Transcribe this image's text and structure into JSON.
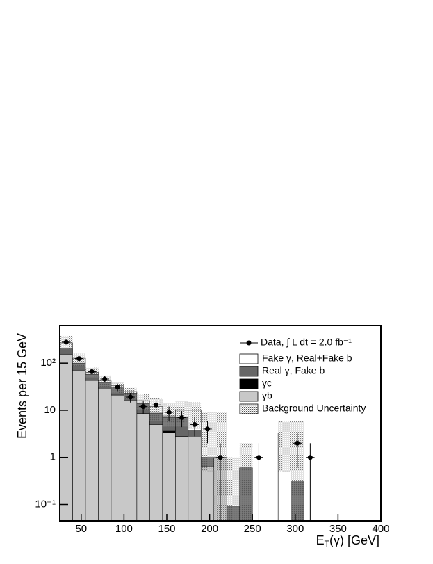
{
  "chart_data": {
    "type": "stacked_histogram",
    "y_label": "Events per 15 GeV",
    "x_label": {
      "main": "E",
      "sub": "T",
      "rest": "(γ) [GeV]"
    },
    "log_y": true,
    "bins": [
      25,
      40,
      55,
      70,
      85,
      100,
      115,
      130,
      145,
      160,
      175,
      190,
      205,
      220,
      235,
      250,
      265,
      280,
      295,
      310,
      325,
      340,
      355,
      370,
      385,
      400
    ],
    "xlim": [
      25,
      400
    ],
    "xticks": [
      50,
      100,
      150,
      200,
      250,
      300,
      350,
      400
    ],
    "ylim": [
      0.045,
      630
    ],
    "yticks": [
      {
        "value": 0.1,
        "label": "10⁻¹"
      },
      1,
      10,
      {
        "value": 100,
        "label": "10²"
      }
    ],
    "series": [
      {
        "name": "γb",
        "color": "#c8c8c8",
        "values": [
          155,
          71,
          43,
          28,
          21,
          16,
          8.5,
          5,
          3.4,
          2.8,
          2.7,
          0.64,
          1.0,
          0,
          0,
          0,
          0,
          0,
          0,
          0,
          0,
          0,
          0,
          0,
          0
        ]
      },
      {
        "name": "γc",
        "color": "#000000",
        "values": [
          0,
          0,
          0,
          0,
          0,
          0,
          0,
          0,
          0.2,
          0,
          0,
          0,
          0,
          0,
          0,
          0,
          0,
          0,
          0,
          0,
          0,
          0,
          0,
          0,
          0
        ]
      },
      {
        "name": "Real γ, Fake b",
        "color": "#666666",
        "values": [
          55,
          29,
          15,
          11,
          10,
          7,
          5.5,
          3.7,
          3.5,
          4.2,
          1.1,
          0.36,
          0,
          0.09,
          0.6,
          0,
          0,
          0,
          0.32,
          0,
          0,
          0,
          0,
          0,
          0
        ]
      },
      {
        "name": "Fake γ, Real+Fake b",
        "color": "#ffffff",
        "values": [
          60,
          27,
          6,
          3,
          2,
          2,
          2,
          3.3,
          0.5,
          3,
          6.2,
          0,
          0,
          0,
          0,
          0,
          0,
          3.3,
          0,
          0,
          0,
          0,
          0,
          0,
          0
        ]
      }
    ],
    "band": {
      "name": "Background Uncertainty",
      "low": [
        200,
        85,
        50,
        32,
        23,
        17,
        10,
        6,
        4.5,
        4.5,
        4,
        0.5,
        null,
        null,
        null,
        null,
        null,
        0.5,
        null,
        null,
        null,
        null,
        null,
        null,
        null
      ],
      "high": [
        380,
        160,
        80,
        55,
        40,
        30,
        22,
        18,
        14,
        16,
        15,
        9,
        9,
        1.0,
        2,
        null,
        null,
        6,
        6,
        null,
        null,
        null,
        null,
        null,
        null
      ]
    },
    "data": {
      "name": "Data, ∫ L dt = 2.0 fb⁻¹",
      "values": [
        280,
        125,
        66,
        46,
        31,
        19,
        12,
        13,
        9,
        7,
        5,
        4,
        1,
        null,
        null,
        1,
        null,
        null,
        2,
        1,
        null,
        null,
        null,
        null,
        null
      ],
      "errors": [
        17,
        11,
        8,
        7,
        5.6,
        4.4,
        3.5,
        3.6,
        3,
        2.6,
        2.2,
        2,
        1,
        null,
        null,
        1,
        null,
        null,
        1.4,
        1,
        null,
        null,
        null,
        null,
        null
      ]
    }
  }
}
